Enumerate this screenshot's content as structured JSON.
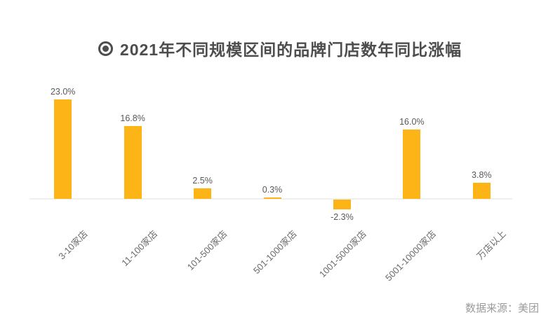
{
  "header": {
    "icon": "bullseye-icon",
    "title": "2021年不同规模区间的品牌门店数年同比涨幅"
  },
  "footer": {
    "source": "数据来源：美团"
  },
  "colors": {
    "bar": "#FCB416",
    "title_text": "#4D4D4D",
    "value_label": "#595959",
    "category_label": "#6B6B6B",
    "axis_line": "#EFEFEF",
    "source_text": "#9B9B9B",
    "background": "#FFFFFF"
  },
  "chart_data": {
    "type": "bar",
    "title": "2021年不同规模区间的品牌门店数年同比涨幅",
    "categories": [
      "3-10家店",
      "11-100家店",
      "101-500家店",
      "501-1000家店",
      "1001-5000家店",
      "5001-10000家店",
      "万店以上"
    ],
    "values": [
      23.0,
      16.8,
      2.5,
      0.3,
      -2.3,
      16.0,
      3.8
    ],
    "value_labels": [
      "23.0%",
      "16.8%",
      "2.5%",
      "0.3%",
      "-2.3%",
      "16.0%",
      "3.8%"
    ],
    "unit": "percent",
    "ylim": [
      -4,
      25
    ],
    "grid": false,
    "legend": null,
    "xlabel": "",
    "ylabel": "",
    "bar_color": "#FCB416",
    "source": "数据来源：美团"
  }
}
